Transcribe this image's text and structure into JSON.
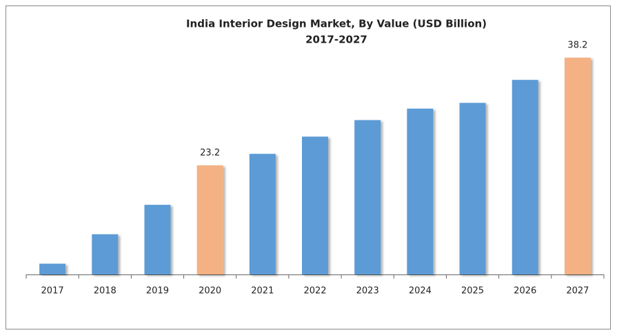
{
  "chart_data": {
    "type": "bar",
    "title": "India Interior Design Market, By Value (USD Billion)",
    "subtitle": "2017-2027",
    "categories": [
      "2017",
      "2018",
      "2019",
      "2020",
      "2021",
      "2022",
      "2023",
      "2024",
      "2025",
      "2026",
      "2027"
    ],
    "values": [
      9.5,
      13.6,
      17.7,
      23.2,
      24.8,
      27.2,
      29.5,
      31.1,
      31.9,
      35.1,
      38.2
    ],
    "value_labels": [
      null,
      null,
      null,
      "23.2",
      null,
      null,
      null,
      null,
      null,
      null,
      "38.2"
    ],
    "colors": [
      "#5b9bd5",
      "#5b9bd5",
      "#5b9bd5",
      "#f4b183",
      "#5b9bd5",
      "#5b9bd5",
      "#5b9bd5",
      "#5b9bd5",
      "#5b9bd5",
      "#5b9bd5",
      "#f4b183"
    ],
    "ylim": [
      8,
      40
    ]
  }
}
